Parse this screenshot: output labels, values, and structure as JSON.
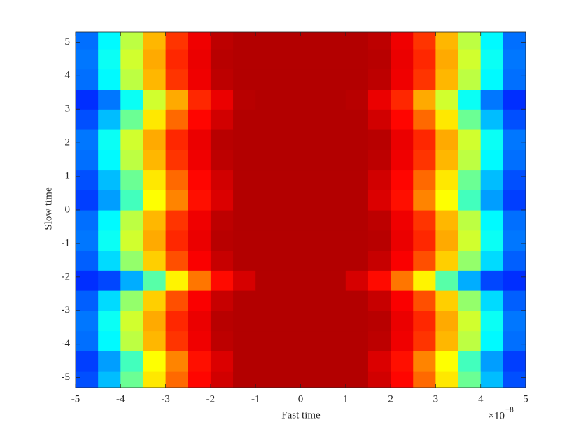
{
  "chart_data": {
    "type": "heatmap",
    "x_label": "Fast time",
    "y_label": "Slow time",
    "x_multiplier_base": "×10",
    "x_multiplier_exponent": "−8",
    "colormap": "jet",
    "clim": [
      0,
      1
    ],
    "xlim": [
      -5e-08,
      5e-08
    ],
    "xticks": [
      {
        "value": -5e-08,
        "label": "-5"
      },
      {
        "value": -4e-08,
        "label": "-4"
      },
      {
        "value": -3e-08,
        "label": "-3"
      },
      {
        "value": -2e-08,
        "label": "-2"
      },
      {
        "value": -1e-08,
        "label": "-1"
      },
      {
        "value": 0,
        "label": "0"
      },
      {
        "value": 1e-08,
        "label": "1"
      },
      {
        "value": 2e-08,
        "label": "2"
      },
      {
        "value": 3e-08,
        "label": "3"
      },
      {
        "value": 4e-08,
        "label": "4"
      },
      {
        "value": 5e-08,
        "label": "5"
      }
    ],
    "ylim": [
      -5.3,
      5.3
    ],
    "yticks": [
      -5,
      -4,
      -3,
      -2,
      -1,
      0,
      1,
      2,
      3,
      4,
      5
    ],
    "x": [
      -4.75e-08,
      -4.25e-08,
      -3.75e-08,
      -3.25e-08,
      -2.75e-08,
      -2.25e-08,
      -1.75e-08,
      -1.25e-08,
      -7.5e-09,
      -2.5e-09,
      2.5e-09,
      7.5e-09,
      1.25e-08,
      1.75e-08,
      2.25e-08,
      2.75e-08,
      3.25e-08,
      3.75e-08,
      4.25e-08,
      4.75e-08
    ],
    "y": [
      -5.1,
      -4.5,
      -3.9,
      -3.3,
      -2.7,
      -2.1,
      -1.5,
      -0.9,
      -0.3,
      0.3,
      0.9,
      1.5,
      2.1,
      2.7,
      3.3,
      3.9,
      4.5,
      5.1
    ],
    "z": [
      [
        0.202,
        0.31,
        0.48,
        0.648,
        0.772,
        0.87,
        0.92,
        0.95,
        0.95,
        0.95,
        0.95,
        0.95,
        0.95,
        0.92,
        0.87,
        0.772,
        0.648,
        0.48,
        0.31,
        0.202
      ],
      [
        0.186,
        0.28,
        0.44,
        0.624,
        0.746,
        0.86,
        0.91,
        0.95,
        0.95,
        0.95,
        0.95,
        0.95,
        0.95,
        0.91,
        0.86,
        0.746,
        0.624,
        0.44,
        0.28,
        0.186
      ],
      [
        0.234,
        0.37,
        0.56,
        0.696,
        0.824,
        0.89,
        0.94,
        0.95,
        0.95,
        0.95,
        0.95,
        0.95,
        0.95,
        0.94,
        0.89,
        0.824,
        0.696,
        0.56,
        0.37,
        0.234
      ],
      [
        0.242,
        0.385,
        0.58,
        0.708,
        0.837,
        0.895,
        0.945,
        0.95,
        0.95,
        0.95,
        0.95,
        0.95,
        0.95,
        0.945,
        0.895,
        0.837,
        0.708,
        0.58,
        0.385,
        0.242
      ],
      [
        0.218,
        0.34,
        0.52,
        0.672,
        0.798,
        0.88,
        0.93,
        0.95,
        0.95,
        0.95,
        0.95,
        0.95,
        0.95,
        0.93,
        0.88,
        0.798,
        0.672,
        0.52,
        0.34,
        0.218
      ],
      [
        0.17,
        0.194,
        0.295,
        0.46,
        0.636,
        0.759,
        0.865,
        0.915,
        0.95,
        0.95,
        0.95,
        0.95,
        0.915,
        0.865,
        0.759,
        0.636,
        0.46,
        0.295,
        0.194,
        0.17
      ],
      [
        0.218,
        0.34,
        0.52,
        0.672,
        0.798,
        0.88,
        0.93,
        0.95,
        0.95,
        0.95,
        0.95,
        0.95,
        0.95,
        0.93,
        0.88,
        0.798,
        0.672,
        0.52,
        0.34,
        0.218
      ],
      [
        0.242,
        0.385,
        0.58,
        0.708,
        0.837,
        0.895,
        0.945,
        0.95,
        0.95,
        0.95,
        0.95,
        0.95,
        0.95,
        0.945,
        0.895,
        0.837,
        0.708,
        0.58,
        0.385,
        0.242
      ],
      [
        0.234,
        0.37,
        0.56,
        0.696,
        0.824,
        0.89,
        0.94,
        0.95,
        0.95,
        0.95,
        0.95,
        0.95,
        0.95,
        0.94,
        0.89,
        0.824,
        0.696,
        0.56,
        0.37,
        0.234
      ],
      [
        0.186,
        0.28,
        0.44,
        0.624,
        0.746,
        0.86,
        0.91,
        0.95,
        0.95,
        0.95,
        0.95,
        0.95,
        0.95,
        0.91,
        0.86,
        0.746,
        0.624,
        0.44,
        0.28,
        0.186
      ],
      [
        0.202,
        0.31,
        0.48,
        0.648,
        0.772,
        0.87,
        0.92,
        0.95,
        0.95,
        0.95,
        0.95,
        0.95,
        0.95,
        0.92,
        0.87,
        0.772,
        0.648,
        0.48,
        0.31,
        0.202
      ],
      [
        0.234,
        0.37,
        0.56,
        0.696,
        0.824,
        0.89,
        0.94,
        0.95,
        0.95,
        0.95,
        0.95,
        0.95,
        0.95,
        0.94,
        0.89,
        0.824,
        0.696,
        0.56,
        0.37,
        0.234
      ],
      [
        0.242,
        0.385,
        0.58,
        0.708,
        0.837,
        0.895,
        0.945,
        0.95,
        0.95,
        0.95,
        0.95,
        0.95,
        0.95,
        0.945,
        0.895,
        0.837,
        0.708,
        0.58,
        0.385,
        0.242
      ],
      [
        0.202,
        0.31,
        0.48,
        0.648,
        0.772,
        0.87,
        0.92,
        0.95,
        0.95,
        0.95,
        0.95,
        0.95,
        0.95,
        0.92,
        0.87,
        0.772,
        0.648,
        0.48,
        0.31,
        0.202
      ],
      [
        0.17,
        0.242,
        0.385,
        0.58,
        0.708,
        0.837,
        0.895,
        0.945,
        0.95,
        0.95,
        0.95,
        0.95,
        0.945,
        0.895,
        0.837,
        0.708,
        0.58,
        0.385,
        0.242,
        0.17
      ],
      [
        0.234,
        0.37,
        0.56,
        0.696,
        0.824,
        0.89,
        0.94,
        0.95,
        0.95,
        0.95,
        0.95,
        0.95,
        0.95,
        0.94,
        0.89,
        0.824,
        0.696,
        0.56,
        0.37,
        0.234
      ],
      [
        0.242,
        0.385,
        0.58,
        0.708,
        0.837,
        0.895,
        0.945,
        0.95,
        0.95,
        0.95,
        0.95,
        0.95,
        0.95,
        0.945,
        0.895,
        0.837,
        0.708,
        0.58,
        0.385,
        0.242
      ],
      [
        0.234,
        0.37,
        0.56,
        0.696,
        0.824,
        0.89,
        0.94,
        0.95,
        0.95,
        0.95,
        0.95,
        0.95,
        0.95,
        0.94,
        0.89,
        0.824,
        0.696,
        0.56,
        0.37,
        0.234
      ]
    ]
  }
}
